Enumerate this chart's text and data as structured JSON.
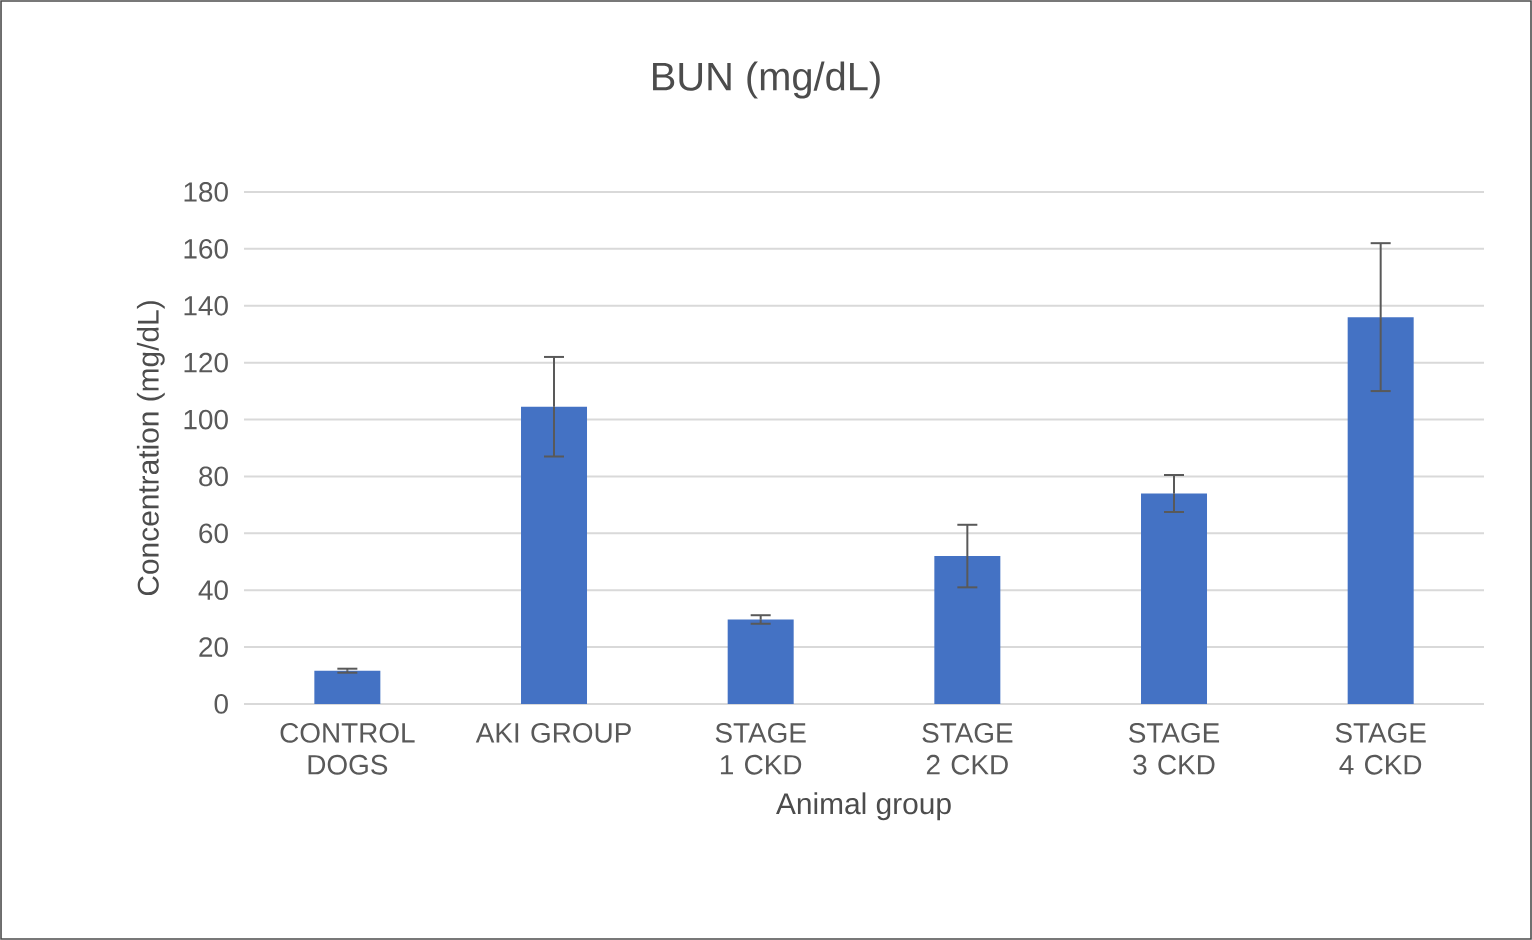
{
  "chart_data": {
    "type": "bar",
    "title": "BUN (mg/dL)",
    "xlabel": "Animal group",
    "ylabel": "Concentration (mg/dL)",
    "categories": [
      "CONTROL DOGS",
      "AKI GROUP",
      "STAGE 1 CKD",
      "STAGE 2 CKD",
      "STAGE 3 CKD",
      "STAGE 4 CKD"
    ],
    "values": [
      11.7,
      104.5,
      29.7,
      52,
      74,
      136
    ],
    "errors": [
      0.7,
      17.5,
      1.5,
      11,
      6.5,
      26
    ],
    "color": "#4472c4",
    "ylim": [
      0,
      180
    ],
    "yticks": [
      0,
      20,
      40,
      60,
      80,
      100,
      120,
      140,
      160,
      180
    ],
    "grid": "y"
  }
}
